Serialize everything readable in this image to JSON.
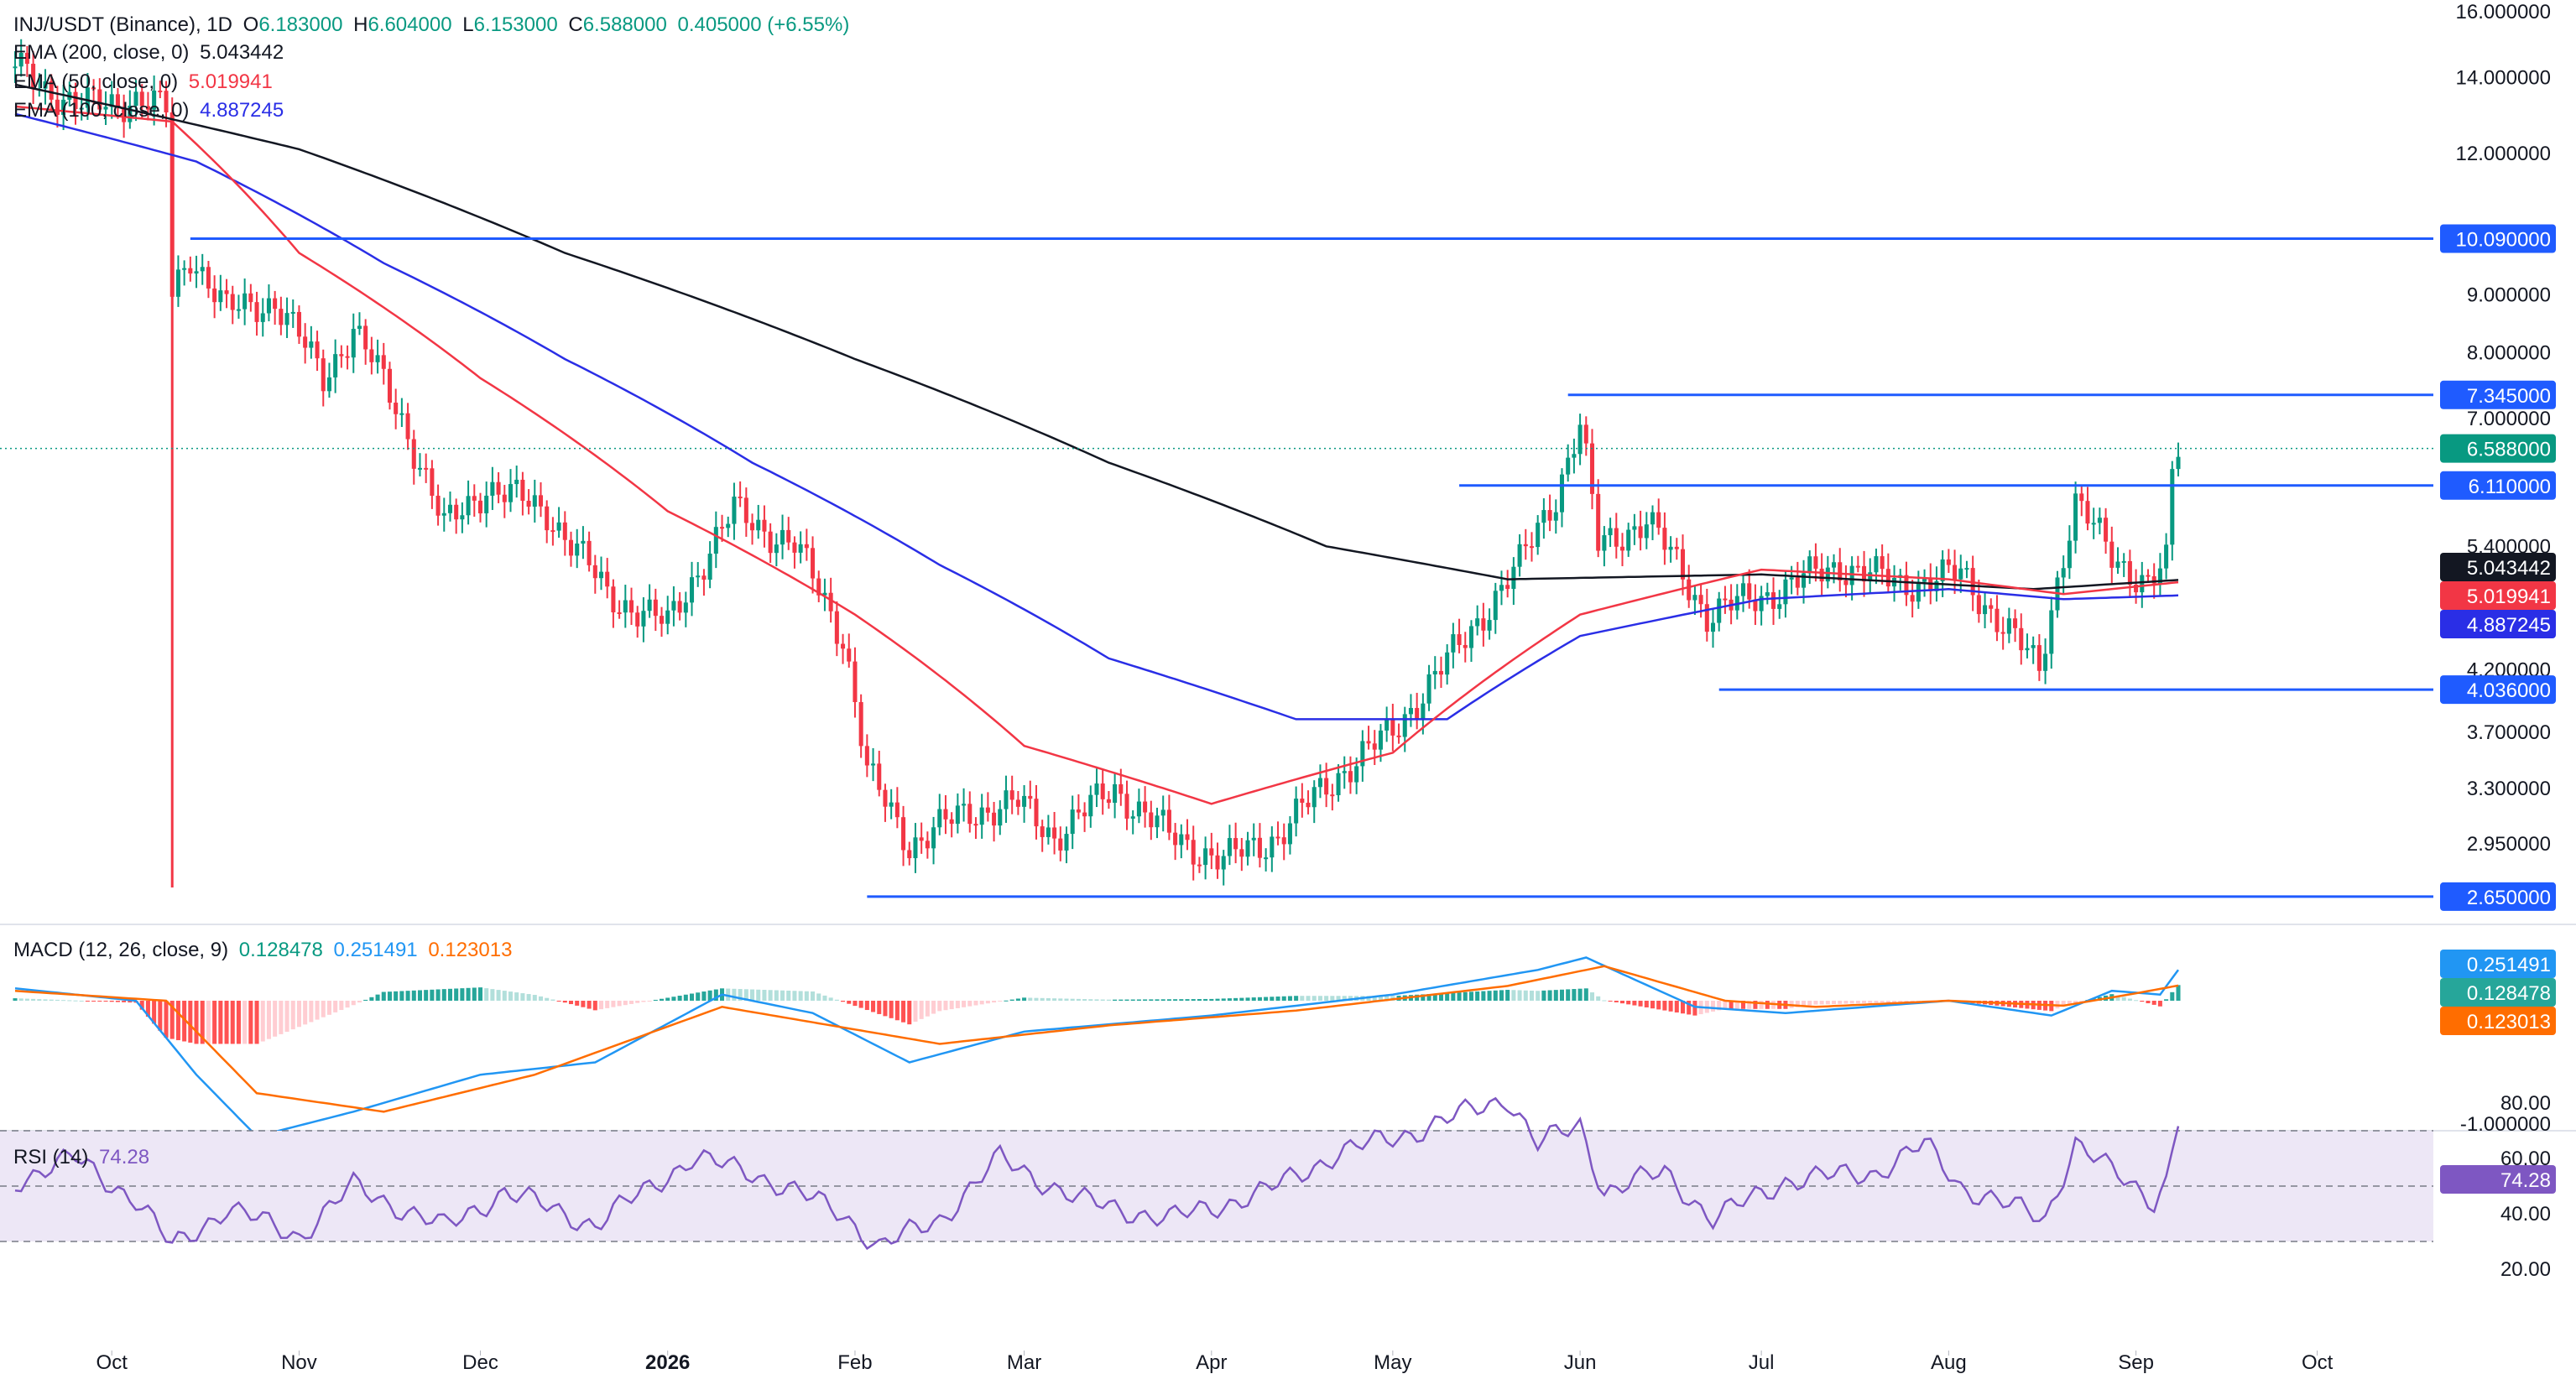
{
  "header": {
    "symbol": "INJ/USDT (Binance), 1D",
    "o_label": "O",
    "o": "6.183000",
    "h_label": "H",
    "h": "6.604000",
    "l_label": "L",
    "l": "6.153000",
    "c_label": "C",
    "c": "6.588000",
    "change": "0.405000 (+6.55%)"
  },
  "indicators": {
    "ema200": {
      "label": "EMA (200, close, 0)",
      "value": "5.043442",
      "color": "#131722"
    },
    "ema50": {
      "label": "EMA (50, close, 0)",
      "value": "5.019941",
      "color": "#f23645"
    },
    "ema100": {
      "label": "EMA (100, close, 0)",
      "value": "4.887245",
      "color": "#2a2ee6"
    },
    "macd": {
      "label": "MACD (12, 26, close, 9)",
      "hist": "0.128478",
      "macd": "0.251491",
      "signal": "0.123013"
    },
    "rsi": {
      "label": "RSI (14)",
      "value": "74.28"
    }
  },
  "colors": {
    "up": "#089981",
    "down": "#f23645",
    "level": "#1f5bff",
    "macd_line": "#2196f3",
    "signal_line": "#ff6d00",
    "rsi_line": "#7e57c2",
    "rsi_band": "#ede7f6",
    "ema200": "#131722",
    "ema50": "#f23645",
    "ema100": "#2a2ee6"
  },
  "chart_data": {
    "type": "candlestick",
    "scale": "log",
    "price_axis_labels": [
      "16.000000",
      "14.000000",
      "12.000000",
      "9.000000",
      "8.000000",
      "7.000000",
      "5.400000",
      "4.200000",
      "3.700000",
      "3.300000",
      "2.950000"
    ],
    "macd_axis_labels": [
      "-1.000000"
    ],
    "rsi_axis_labels": [
      "80.00",
      "60.00",
      "40.00",
      "20.00"
    ],
    "time_axis_labels": [
      "Oct",
      "Nov",
      "Dec",
      "2026",
      "Feb",
      "Mar",
      "Apr",
      "May",
      "Jun",
      "Jul",
      "Aug",
      "Sep",
      "Oct"
    ],
    "horizontal_levels": [
      {
        "value": 10.09,
        "label": "10.090000"
      },
      {
        "value": 7.345,
        "label": "7.345000"
      },
      {
        "value": 6.11,
        "label": "6.110000"
      },
      {
        "value": 4.036,
        "label": "4.036000"
      },
      {
        "value": 2.65,
        "label": "2.650000"
      }
    ],
    "last_price": {
      "value": 6.588,
      "label": "6.588000"
    },
    "ema_tags": [
      {
        "value": 5.043442,
        "label": "5.043442",
        "key": "ema200"
      },
      {
        "value": 5.019941,
        "label": "5.019941",
        "key": "ema50"
      },
      {
        "value": 4.887245,
        "label": "4.887245",
        "key": "ema100"
      }
    ],
    "price_anchors": [
      [
        "2025-09-15",
        14.3
      ],
      [
        "2025-09-25",
        13.2
      ],
      [
        "2025-10-05",
        13.4
      ],
      [
        "2025-10-10",
        13.1
      ],
      [
        "2025-10-11",
        9.0
      ],
      [
        "2025-10-14",
        9.8
      ],
      [
        "2025-10-20",
        8.7
      ],
      [
        "2025-10-28",
        8.9
      ],
      [
        "2025-11-05",
        7.6
      ],
      [
        "2025-11-10",
        8.4
      ],
      [
        "2025-11-18",
        7.0
      ],
      [
        "2025-11-25",
        5.6
      ],
      [
        "2025-12-02",
        6.1
      ],
      [
        "2025-12-12",
        5.8
      ],
      [
        "2025-12-22",
        4.9
      ],
      [
        "2026-01-01",
        4.6
      ],
      [
        "2026-01-12",
        5.8
      ],
      [
        "2026-01-22",
        5.4
      ],
      [
        "2026-01-30",
        4.5
      ],
      [
        "2026-02-03",
        3.4
      ],
      [
        "2026-02-10",
        2.95
      ],
      [
        "2026-02-20",
        3.15
      ],
      [
        "2026-02-28",
        3.2
      ],
      [
        "2026-03-06",
        3.0
      ],
      [
        "2026-03-16",
        3.3
      ],
      [
        "2026-03-25",
        3.0
      ],
      [
        "2026-04-03",
        2.85
      ],
      [
        "2026-04-12",
        3.0
      ],
      [
        "2026-04-22",
        3.4
      ],
      [
        "2026-05-01",
        3.7
      ],
      [
        "2026-05-12",
        4.4
      ],
      [
        "2026-05-22",
        5.2
      ],
      [
        "2026-05-28",
        6.0
      ],
      [
        "2026-06-01",
        6.9
      ],
      [
        "2026-06-04",
        5.4
      ],
      [
        "2026-06-12",
        5.7
      ],
      [
        "2026-06-22",
        4.7
      ],
      [
        "2026-07-02",
        4.9
      ],
      [
        "2026-07-14",
        5.2
      ],
      [
        "2026-07-24",
        5.0
      ],
      [
        "2026-08-03",
        5.1
      ],
      [
        "2026-08-10",
        4.6
      ],
      [
        "2026-08-16",
        4.2
      ],
      [
        "2026-08-22",
        5.9
      ],
      [
        "2026-08-28",
        5.3
      ],
      [
        "2026-09-03",
        5.0
      ],
      [
        "2026-09-06",
        5.2
      ],
      [
        "2026-09-07",
        6.2
      ],
      [
        "2026-09-08",
        6.588
      ]
    ],
    "ema200_anchors": [
      [
        "2025-09-15",
        13.8
      ],
      [
        "2025-11-01",
        12.1
      ],
      [
        "2025-12-15",
        9.8
      ],
      [
        "2026-02-01",
        7.9
      ],
      [
        "2026-03-15",
        6.4
      ],
      [
        "2026-04-20",
        5.4
      ],
      [
        "2026-05-20",
        5.05
      ],
      [
        "2026-07-01",
        5.1
      ],
      [
        "2026-08-15",
        4.95
      ],
      [
        "2026-09-08",
        5.043
      ]
    ],
    "ema50_anchors": [
      [
        "2025-09-15",
        13.2
      ],
      [
        "2025-10-11",
        12.8
      ],
      [
        "2025-11-01",
        9.8
      ],
      [
        "2025-12-01",
        7.6
      ],
      [
        "2026-01-01",
        5.8
      ],
      [
        "2026-02-01",
        4.7
      ],
      [
        "2026-03-01",
        3.6
      ],
      [
        "2026-04-01",
        3.2
      ],
      [
        "2026-05-01",
        3.55
      ],
      [
        "2026-06-01",
        4.7
      ],
      [
        "2026-07-01",
        5.15
      ],
      [
        "2026-08-01",
        5.05
      ],
      [
        "2026-08-20",
        4.9
      ],
      [
        "2026-09-08",
        5.02
      ]
    ],
    "ema100_anchors": [
      [
        "2025-09-15",
        13.0
      ],
      [
        "2025-10-15",
        11.8
      ],
      [
        "2025-11-15",
        9.6
      ],
      [
        "2025-12-15",
        7.9
      ],
      [
        "2026-01-15",
        6.4
      ],
      [
        "2026-02-15",
        5.2
      ],
      [
        "2026-03-15",
        4.3
      ],
      [
        "2026-04-15",
        3.8
      ],
      [
        "2026-05-10",
        3.8
      ],
      [
        "2026-06-01",
        4.5
      ],
      [
        "2026-07-01",
        4.85
      ],
      [
        "2026-08-01",
        4.95
      ],
      [
        "2026-08-20",
        4.85
      ],
      [
        "2026-09-08",
        4.887
      ]
    ],
    "macd_anchors": [
      [
        "2025-09-15",
        0.1
      ],
      [
        "2025-10-05",
        0.0
      ],
      [
        "2025-10-15",
        -0.6
      ],
      [
        "2025-10-25",
        -1.1
      ],
      [
        "2025-11-10",
        -0.9
      ],
      [
        "2025-12-01",
        -0.6
      ],
      [
        "2025-12-20",
        -0.5
      ],
      [
        "2026-01-10",
        0.05
      ],
      [
        "2026-01-25",
        -0.1
      ],
      [
        "2026-02-10",
        -0.5
      ],
      [
        "2026-03-01",
        -0.25
      ],
      [
        "2026-04-01",
        -0.12
      ],
      [
        "2026-05-01",
        0.05
      ],
      [
        "2026-05-25",
        0.25
      ],
      [
        "2026-06-02",
        0.35
      ],
      [
        "2026-06-20",
        -0.05
      ],
      [
        "2026-07-05",
        -0.1
      ],
      [
        "2026-08-01",
        0.0
      ],
      [
        "2026-08-18",
        -0.12
      ],
      [
        "2026-08-28",
        0.08
      ],
      [
        "2026-09-05",
        0.05
      ],
      [
        "2026-09-08",
        0.25
      ]
    ],
    "signal_anchors": [
      [
        "2025-09-15",
        0.08
      ],
      [
        "2025-10-10",
        0.0
      ],
      [
        "2025-10-25",
        -0.75
      ],
      [
        "2025-11-15",
        -0.9
      ],
      [
        "2025-12-10",
        -0.6
      ],
      [
        "2026-01-10",
        -0.05
      ],
      [
        "2026-02-15",
        -0.35
      ],
      [
        "2026-03-15",
        -0.2
      ],
      [
        "2026-04-15",
        -0.08
      ],
      [
        "2026-05-20",
        0.12
      ],
      [
        "2026-06-05",
        0.28
      ],
      [
        "2026-06-25",
        0.0
      ],
      [
        "2026-07-10",
        -0.05
      ],
      [
        "2026-08-01",
        0.0
      ],
      [
        "2026-08-20",
        -0.04
      ],
      [
        "2026-09-01",
        0.06
      ],
      [
        "2026-09-08",
        0.123
      ]
    ],
    "rsi_anchors": [
      [
        "2025-09-15",
        52
      ],
      [
        "2025-09-25",
        60
      ],
      [
        "2025-10-05",
        45
      ],
      [
        "2025-10-11",
        28
      ],
      [
        "2025-10-20",
        42
      ],
      [
        "2025-11-01",
        32
      ],
      [
        "2025-11-10",
        50
      ],
      [
        "2025-11-25",
        35
      ],
      [
        "2025-12-05",
        48
      ],
      [
        "2025-12-20",
        36
      ],
      [
        "2026-01-05",
        60
      ],
      [
        "2026-01-15",
        55
      ],
      [
        "2026-01-30",
        40
      ],
      [
        "2026-02-05",
        28
      ],
      [
        "2026-02-15",
        38
      ],
      [
        "2026-02-25",
        60
      ],
      [
        "2026-03-10",
        45
      ],
      [
        "2026-03-25",
        38
      ],
      [
        "2026-04-10",
        48
      ],
      [
        "2026-04-22",
        62
      ],
      [
        "2026-05-05",
        70
      ],
      [
        "2026-05-15",
        78
      ],
      [
        "2026-05-20",
        82
      ],
      [
        "2026-05-25",
        65
      ],
      [
        "2026-06-01",
        72
      ],
      [
        "2026-06-05",
        48
      ],
      [
        "2026-06-15",
        55
      ],
      [
        "2026-06-23",
        38
      ],
      [
        "2026-07-05",
        52
      ],
      [
        "2026-07-20",
        55
      ],
      [
        "2026-07-28",
        65
      ],
      [
        "2026-08-03",
        50
      ],
      [
        "2026-08-12",
        42
      ],
      [
        "2026-08-17",
        38
      ],
      [
        "2026-08-22",
        66
      ],
      [
        "2026-08-28",
        55
      ],
      [
        "2026-09-04",
        45
      ],
      [
        "2026-09-06",
        52
      ],
      [
        "2026-09-08",
        74.28
      ]
    ]
  }
}
